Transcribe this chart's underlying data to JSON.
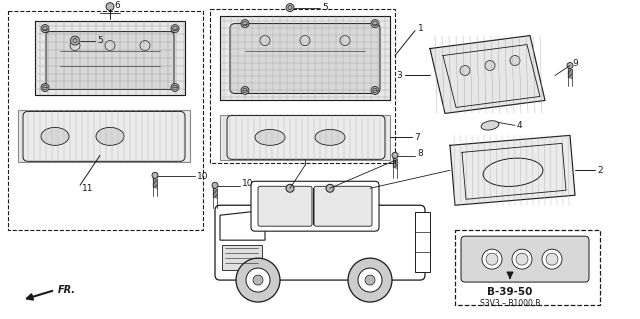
{
  "bg": "#ffffff",
  "lc": "#1a1a1a",
  "gray_fill": "#b8b8b8",
  "light_gray": "#d8d8d8",
  "fig_w": 6.4,
  "fig_h": 3.19,
  "dpi": 100,
  "ref_label": "B-39-50",
  "ref_sub": "S3V3 – B1000 B",
  "fr_label": "FR."
}
